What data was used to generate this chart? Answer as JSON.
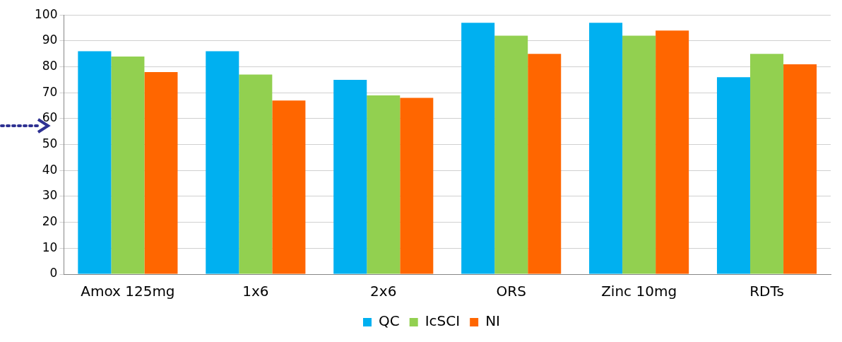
{
  "chart_data": {
    "type": "bar",
    "categories": [
      "Amox 125mg",
      "1x6",
      "2x6",
      "ORS",
      "Zinc 10mg",
      "RDTs"
    ],
    "series": [
      {
        "name": "QC",
        "color": "#00b0f0",
        "values": [
          86,
          86,
          75,
          97,
          97,
          76
        ]
      },
      {
        "name": "IcSCI",
        "color": "#92d050",
        "values": [
          84,
          77,
          69,
          92,
          92,
          85
        ]
      },
      {
        "name": "NI",
        "color": "#ff6600",
        "values": [
          78,
          67,
          68,
          85,
          94,
          81
        ]
      }
    ],
    "ylim": [
      0,
      100
    ],
    "yticks": [
      0,
      10,
      20,
      30,
      40,
      50,
      60,
      70,
      80,
      90,
      100
    ],
    "grid": "y",
    "legend": "bottom"
  }
}
